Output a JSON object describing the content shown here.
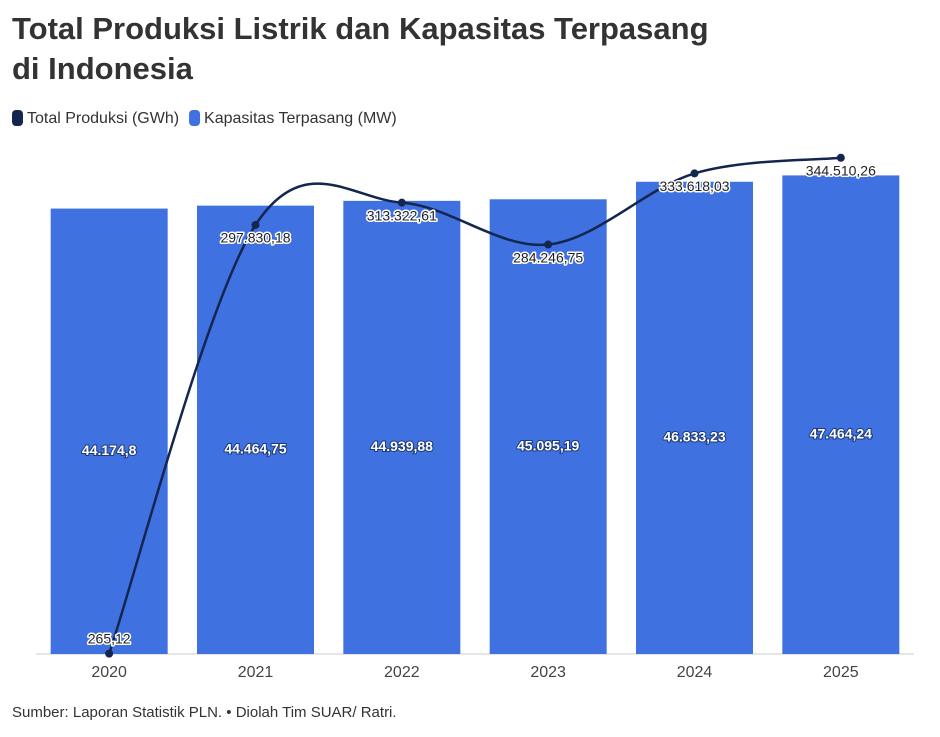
{
  "chart_data": {
    "type": "bar",
    "title": "Total Produksi Listrik dan Kapasitas Terpasang di Indonesia",
    "categories": [
      "2020",
      "2021",
      "2022",
      "2023",
      "2024",
      "2025"
    ],
    "ylim": [
      0,
      48000
    ],
    "y2lim": [
      0,
      336000
    ],
    "series": [
      {
        "name": "Total Produksi (GWh)",
        "type": "line",
        "axis": "y2",
        "color": "#14254f",
        "values": [
          265.12,
          297830.18,
          313322.61,
          284246.75,
          333618.03,
          344510.26
        ],
        "value_labels": [
          "265,12",
          "297.830,18",
          "313.322,61",
          "284.246,75",
          "333.618,03",
          "344.510,26"
        ]
      },
      {
        "name": "Kapasitas Terpasang (MW)",
        "type": "bar",
        "color": "#3f72e0",
        "values": [
          44174.8,
          44464.75,
          44939.88,
          45095.19,
          46833.23,
          47464.24
        ],
        "value_labels": [
          "44.174,8",
          "44.464,75",
          "44.939,88",
          "45.095,19",
          "46.833,23",
          "47.464,24"
        ]
      }
    ],
    "source": "Sumber: Laporan Statistik PLN. • Diolah Tim SUAR/ Ratri."
  }
}
